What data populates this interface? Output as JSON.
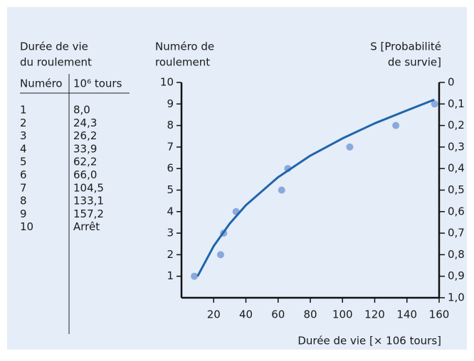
{
  "table": {
    "title": [
      "Durée de vie",
      "du roulement"
    ],
    "columns": [
      "Numéro",
      "10⁶ tours"
    ],
    "rows": [
      [
        "1",
        "8,0"
      ],
      [
        "2",
        "24,3"
      ],
      [
        "3",
        "26,2"
      ],
      [
        "4",
        "33,9"
      ],
      [
        "5",
        "62,2"
      ],
      [
        "6",
        "66,0"
      ],
      [
        "7",
        "104,5"
      ],
      [
        "8",
        "133,1"
      ],
      [
        "9",
        "157,2"
      ],
      [
        "10",
        "Arrêt"
      ]
    ]
  },
  "chart_data": {
    "type": "scatter",
    "y_label": [
      "Numéro de",
      "roulement"
    ],
    "y2_label": [
      "S [Probabilité",
      "de survie]"
    ],
    "x_label": "Durée de vie [× 106 tours]",
    "xlim": [
      0,
      160
    ],
    "xticks": [
      20,
      40,
      60,
      80,
      100,
      120,
      140,
      160
    ],
    "ylim": [
      0,
      10
    ],
    "yticks": [
      1,
      2,
      3,
      4,
      5,
      6,
      7,
      8,
      9,
      10
    ],
    "y2lim": [
      1,
      0
    ],
    "y2ticks": [
      0,
      {
        "value": 0.1,
        "label": "0,1"
      },
      {
        "value": 0.2,
        "label": "0,2"
      },
      {
        "value": 0.3,
        "label": "0,3"
      },
      {
        "value": 0.4,
        "label": "0,4"
      },
      {
        "value": 0.5,
        "label": "0,5"
      },
      {
        "value": 0.6,
        "label": "0,6"
      },
      {
        "value": 0.7,
        "label": "0,7"
      },
      {
        "value": 0.8,
        "label": "0,8"
      },
      {
        "value": 0.9,
        "label": "0,9"
      },
      {
        "value": 1.0,
        "label": "1,0"
      }
    ],
    "series": [
      {
        "type": "scatter",
        "color": "#8aa8dc",
        "x": [
          8,
          24.3,
          26.2,
          33.9,
          62.2,
          66,
          104.5,
          133.1,
          157.2
        ],
        "values": [
          1,
          2,
          3,
          4,
          5,
          6,
          7,
          8,
          9
        ]
      },
      {
        "type": "line",
        "color": "#1f64aa",
        "x": [
          10,
          20,
          30,
          40,
          60,
          80,
          100,
          120,
          140,
          157
        ],
        "values": [
          1,
          2.4,
          3.45,
          4.3,
          5.6,
          6.6,
          7.4,
          8.1,
          8.7,
          9.2
        ]
      }
    ]
  }
}
